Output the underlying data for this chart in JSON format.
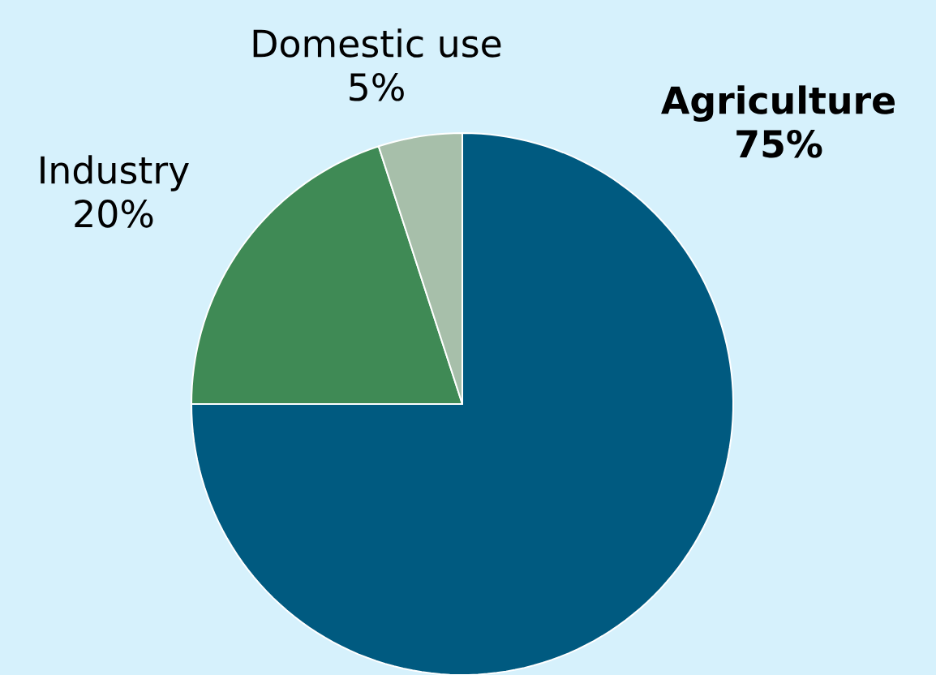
{
  "chart_data": {
    "type": "pie",
    "categories": [
      "Agriculture",
      "Industry",
      "Domestic use"
    ],
    "values": [
      75,
      20,
      5
    ],
    "value_labels": [
      "75%",
      "20%",
      "5%"
    ],
    "colors": [
      "#005a80",
      "#3f8a55",
      "#a7bfaa"
    ]
  }
}
